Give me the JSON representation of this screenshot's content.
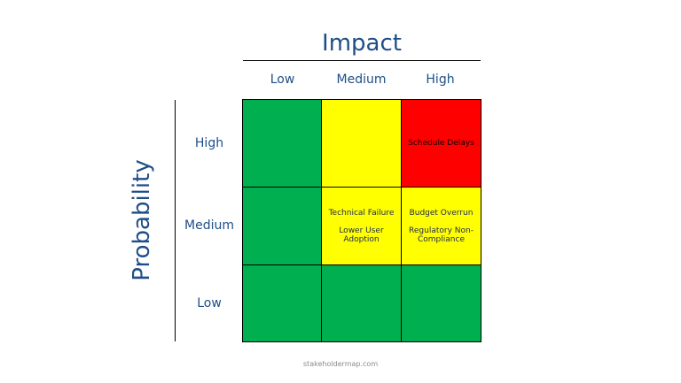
{
  "impact": {
    "title": "Impact",
    "levels": [
      "Low",
      "Medium",
      "High"
    ]
  },
  "probability": {
    "title": "Probability",
    "levels": [
      "High",
      "Medium",
      "Low"
    ]
  },
  "matrix": {
    "high": {
      "low": {
        "color": "#00b050",
        "risks": []
      },
      "medium": {
        "color": "#ffff00",
        "risks": []
      },
      "high": {
        "color": "#ff0000",
        "risks": [
          "Schedule Delays"
        ]
      }
    },
    "medium": {
      "low": {
        "color": "#00b050",
        "risks": []
      },
      "medium": {
        "color": "#ffff00",
        "risks": [
          "Technical Failure",
          "Lower User Adoption"
        ]
      },
      "high": {
        "color": "#ffff00",
        "risks": [
          "Budget Overrun",
          "Regulatory Non-Compliance"
        ]
      }
    },
    "low": {
      "low": {
        "color": "#00b050",
        "risks": []
      },
      "medium": {
        "color": "#00b050",
        "risks": []
      },
      "high": {
        "color": "#00b050",
        "risks": []
      }
    }
  },
  "footer": {
    "source": "stakeholdermap.com"
  }
}
